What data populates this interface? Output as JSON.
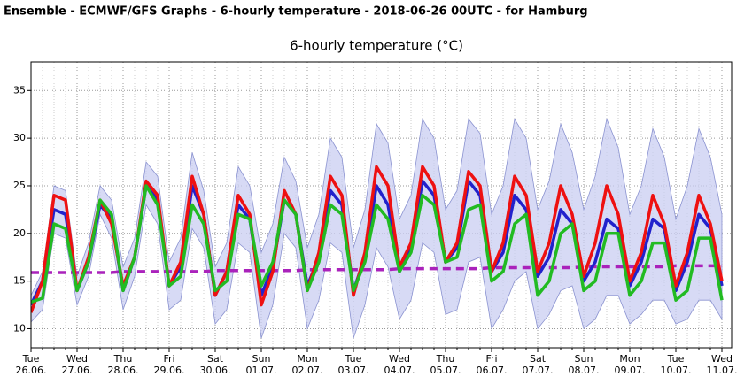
{
  "header": "Ensemble - ECMWF/GFS Graphs - 6-hourly temperature - 2018-06-26 00UTC - for Hamburg",
  "chart_data": {
    "type": "line",
    "title": "6-hourly temperature (°C)",
    "categories": [
      "Tue",
      null,
      null,
      null,
      "Wed",
      null,
      null,
      null,
      "Thu",
      null,
      null,
      null,
      "Fri",
      null,
      null,
      null,
      "Sat",
      null,
      null,
      null,
      "Sun",
      null,
      null,
      null,
      "Mon",
      null,
      null,
      null,
      "Tue",
      null,
      null,
      null,
      "Wed",
      null,
      null,
      null,
      "Thu",
      null,
      null,
      null,
      "Fri",
      null,
      null,
      null,
      "Sat",
      null,
      null,
      null,
      "Sun",
      null,
      null,
      null,
      "Mon",
      null,
      null,
      null,
      "Tue",
      null,
      null,
      null,
      "Wed"
    ],
    "category_dates": [
      "26.06.",
      null,
      null,
      null,
      "27.06.",
      null,
      null,
      null,
      "28.06.",
      null,
      null,
      null,
      "29.06.",
      null,
      null,
      null,
      "30.06.",
      null,
      null,
      null,
      "01.07.",
      null,
      null,
      null,
      "02.07.",
      null,
      null,
      null,
      "03.07.",
      null,
      null,
      null,
      "04.07.",
      null,
      null,
      null,
      "05.07.",
      null,
      null,
      null,
      "06.07.",
      null,
      null,
      null,
      "07.07.",
      null,
      null,
      null,
      "08.07.",
      null,
      null,
      null,
      "09.07.",
      null,
      null,
      null,
      "10.07.",
      null,
      null,
      null,
      "11.07."
    ],
    "ylim": [
      8,
      38
    ],
    "yticks": [
      10,
      15,
      20,
      25,
      30,
      35
    ],
    "grid": true,
    "band": {
      "color": "#c9cdf2",
      "high": [
        13.5,
        16,
        25,
        24.5,
        15.5,
        19,
        25,
        23.5,
        16.5,
        19.5,
        27.5,
        26,
        17,
        19.5,
        28.5,
        24.5,
        16.5,
        19,
        27,
        25,
        18,
        21,
        28,
        25.5,
        18.5,
        22,
        30,
        28,
        18.5,
        22.5,
        31.5,
        29.5,
        21.5,
        24,
        32,
        30,
        22.5,
        24.5,
        32,
        30.5,
        22,
        25,
        32,
        30,
        22.5,
        25.5,
        31.5,
        28.5,
        22.5,
        26,
        32,
        29,
        22,
        25,
        31,
        28,
        21.5,
        25,
        31,
        28,
        22
      ],
      "low": [
        10.7,
        12,
        20,
        19.5,
        12.5,
        15.5,
        22,
        19.5,
        12,
        15.5,
        23,
        21,
        12,
        13,
        20.5,
        18.5,
        10.5,
        12,
        19,
        18,
        9,
        12.5,
        20,
        18.5,
        10,
        13,
        19,
        18,
        9,
        12.5,
        18.5,
        16.5,
        11,
        13,
        19,
        18,
        11.5,
        12,
        17,
        17.5,
        10,
        12,
        15,
        16,
        10,
        11.5,
        14,
        14.5,
        10,
        11,
        13.5,
        13.5,
        10.5,
        11.5,
        13,
        13,
        10.5,
        11,
        13,
        13,
        11
      ]
    },
    "series": [
      {
        "color": "#aa22bb",
        "dash": true,
        "values": [
          15.9,
          15.9,
          15.9,
          15.9,
          15.9,
          15.9,
          15.9,
          15.9,
          16,
          16,
          16,
          16,
          16,
          16,
          16,
          16,
          16.1,
          16.1,
          16.1,
          16.1,
          16.1,
          16.1,
          16.1,
          16.1,
          16.2,
          16.2,
          16.2,
          16.2,
          16.2,
          16.2,
          16.2,
          16.2,
          16.3,
          16.3,
          16.3,
          16.3,
          16.3,
          16.3,
          16.3,
          16.3,
          16.4,
          16.4,
          16.4,
          16.4,
          16.4,
          16.4,
          16.4,
          16.4,
          16.5,
          16.5,
          16.5,
          16.5,
          16.5,
          16.5,
          16.5,
          16.5,
          16.6,
          16.6,
          16.6,
          16.6,
          16.6
        ]
      },
      {
        "color": "#2222cc",
        "values": [
          12.5,
          15,
          22.5,
          22,
          14,
          17,
          23,
          21.5,
          14,
          17.5,
          25,
          23.5,
          14.5,
          16.5,
          25,
          22,
          13.5,
          16,
          23,
          21.5,
          13.5,
          16.5,
          23.5,
          22,
          14.5,
          17.5,
          24.5,
          23,
          14,
          17.5,
          25,
          23,
          16,
          18.5,
          25.5,
          24,
          17,
          18.5,
          25.5,
          24,
          16,
          18,
          24,
          22.5,
          15.5,
          17.5,
          22.5,
          21,
          15,
          17,
          21.5,
          20.5,
          14.5,
          17,
          21.5,
          20.5,
          14,
          17,
          22,
          20.5,
          14.5
        ]
      },
      {
        "color": "#ee1111",
        "values": [
          11.7,
          15,
          24,
          23.5,
          14,
          17.5,
          23.5,
          21,
          14.5,
          17.5,
          25.5,
          24,
          14.5,
          17,
          26,
          22,
          13.5,
          16,
          24,
          22,
          12.5,
          16,
          24.5,
          22,
          14,
          18,
          26,
          24,
          13.5,
          18,
          27,
          25,
          16.5,
          19,
          27,
          25,
          17,
          19,
          26.5,
          25,
          16,
          19,
          26,
          24,
          16,
          19,
          25,
          22,
          15.5,
          19,
          25,
          22,
          15,
          18,
          24,
          21,
          14.5,
          18,
          24,
          21,
          15
        ]
      },
      {
        "color": "#22bb22",
        "values": [
          12.8,
          13.2,
          21,
          20.5,
          14,
          17,
          23.5,
          22,
          14,
          17.5,
          25,
          23,
          14.5,
          15.5,
          23,
          21,
          14,
          15,
          22,
          21.5,
          14.5,
          17,
          23.5,
          22,
          14,
          17,
          23,
          22,
          14,
          17,
          23,
          21.5,
          16,
          18,
          24,
          23,
          17,
          17.5,
          22.5,
          23,
          15,
          16,
          21,
          22,
          13.5,
          15,
          20,
          21,
          14,
          15,
          20,
          20,
          13.5,
          15,
          19,
          19,
          13,
          14,
          19.5,
          19.5,
          13
        ]
      }
    ]
  }
}
